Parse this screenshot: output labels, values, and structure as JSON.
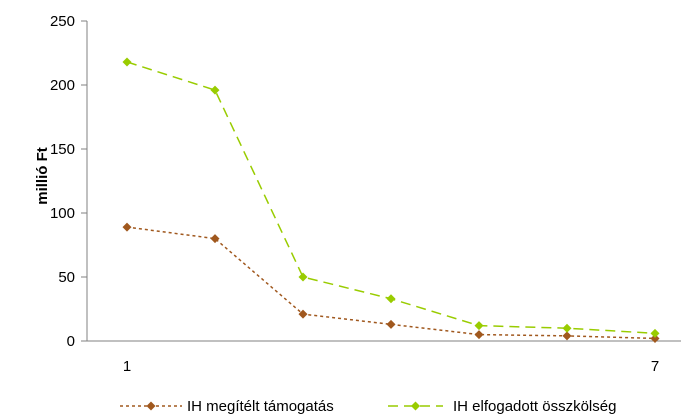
{
  "chart_data": {
    "type": "line",
    "title": "",
    "xlabel": "",
    "ylabel": "millió Ft",
    "ylim": [
      0,
      250
    ],
    "yticks": [
      0,
      50,
      100,
      150,
      200,
      250
    ],
    "x": [
      1,
      2,
      3,
      4,
      5,
      6,
      7
    ],
    "xtick_labels": [
      {
        "x": 1,
        "label": "1"
      },
      {
        "x": 7,
        "label": "7"
      }
    ],
    "grid": false,
    "legend_position": "bottom",
    "series": [
      {
        "name": "IH megítélt támogatás",
        "color": "#A0581E",
        "style": "dotted",
        "marker": "diamond",
        "values": [
          89,
          80,
          21,
          13,
          5,
          4,
          2
        ]
      },
      {
        "name": "IH elfogadott összkölség",
        "color": "#99CC00",
        "style": "dashed",
        "marker": "diamond",
        "values": [
          218,
          196,
          50,
          33,
          12,
          10,
          6
        ]
      }
    ]
  }
}
